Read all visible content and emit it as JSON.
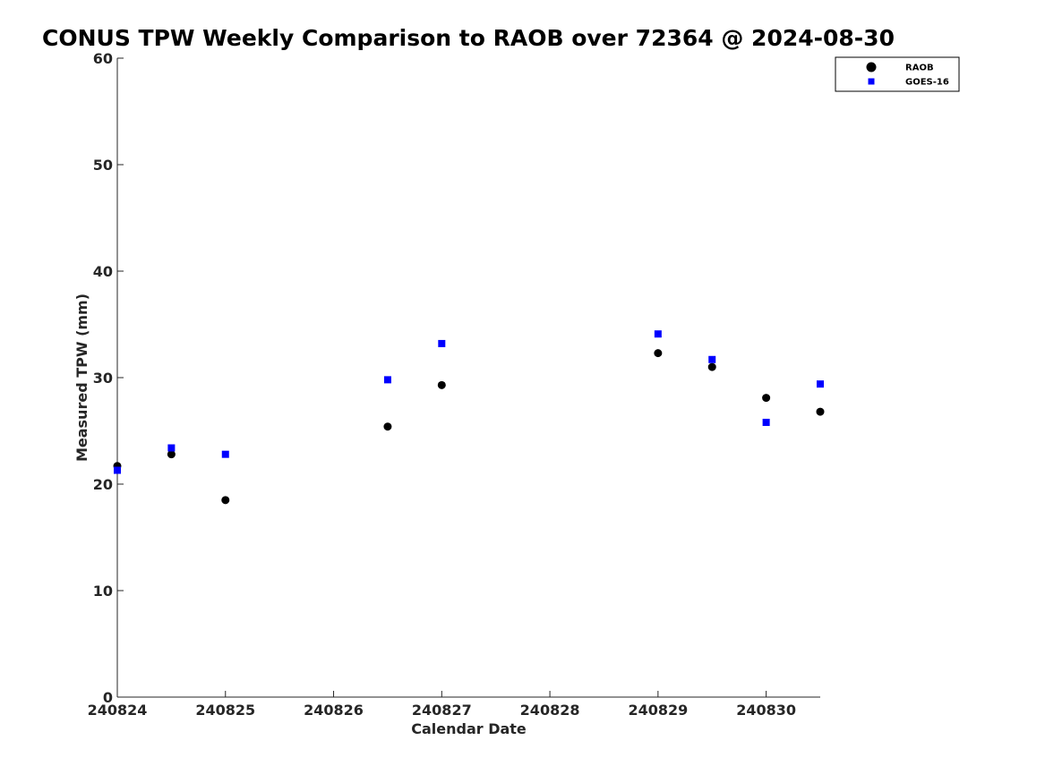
{
  "chart_data": {
    "type": "scatter",
    "title": "CONUS TPW Weekly Comparison to RAOB over 72364 @ 2024-08-30",
    "xlabel": "Calendar Date",
    "ylabel": "Measured TPW (mm)",
    "x_tick_labels": [
      "240824",
      "240825",
      "240826",
      "240827",
      "240828",
      "240829",
      "240830"
    ],
    "x_tick_values": [
      0,
      1,
      2,
      3,
      4,
      5,
      6
    ],
    "xlim": [
      0,
      6.5
    ],
    "ylim": [
      0,
      60
    ],
    "y_ticks": [
      0,
      10,
      20,
      30,
      40,
      50,
      60
    ],
    "grid": false,
    "legend_position": "top-right",
    "series": [
      {
        "name": "RAOB",
        "marker": "circle",
        "color": "#000000",
        "points": [
          {
            "x": 0.0,
            "y": 21.7
          },
          {
            "x": 0.5,
            "y": 22.8
          },
          {
            "x": 1.0,
            "y": 18.5
          },
          {
            "x": 2.5,
            "y": 25.4
          },
          {
            "x": 3.0,
            "y": 29.3
          },
          {
            "x": 5.0,
            "y": 32.3
          },
          {
            "x": 5.5,
            "y": 31.0
          },
          {
            "x": 6.0,
            "y": 28.1
          },
          {
            "x": 6.5,
            "y": 26.8
          }
        ]
      },
      {
        "name": "GOES-16",
        "marker": "square",
        "color": "#0000ff",
        "points": [
          {
            "x": 0.0,
            "y": 21.3
          },
          {
            "x": 0.5,
            "y": 23.4
          },
          {
            "x": 1.0,
            "y": 22.8
          },
          {
            "x": 2.5,
            "y": 29.8
          },
          {
            "x": 3.0,
            "y": 33.2
          },
          {
            "x": 5.0,
            "y": 34.1
          },
          {
            "x": 5.5,
            "y": 31.7
          },
          {
            "x": 6.0,
            "y": 25.8
          },
          {
            "x": 6.5,
            "y": 29.4
          }
        ]
      }
    ]
  }
}
